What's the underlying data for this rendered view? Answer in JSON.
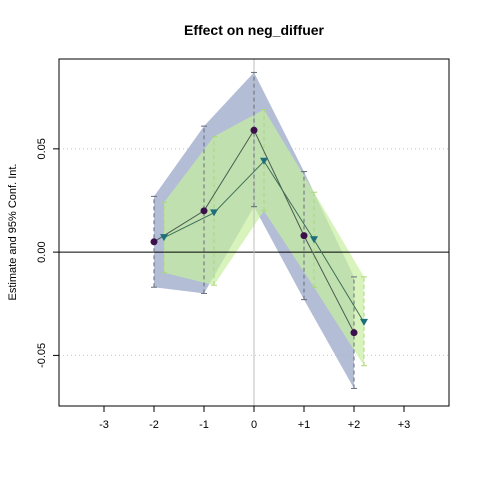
{
  "chart_data": {
    "type": "line",
    "title": "Effect on neg_diffuer",
    "xlabel": "",
    "ylabel": "Estimate and 95% Conf. Int.",
    "xlim": [
      -3.9,
      3.9
    ],
    "ylim": [
      -0.0745,
      0.0935
    ],
    "x_ticks": [
      -3,
      -2,
      -1,
      0,
      1,
      2,
      3
    ],
    "x_tick_labels": [
      "-3",
      "-2",
      "-1",
      "0",
      "+1",
      "+2",
      "+3"
    ],
    "y_ticks": [
      -0.05,
      0.0,
      0.05
    ],
    "y_tick_labels": [
      "-0.05",
      "0.00",
      "0.05"
    ],
    "grid": "horizontal-dotted",
    "zero_line": true,
    "reference_vline": 0,
    "series": [
      {
        "marker": "circle",
        "color": "#3b0f4a",
        "band_color": "#a6b1cf",
        "x": [
          -2,
          -1,
          0,
          1,
          2
        ],
        "y": [
          0.005,
          0.02,
          0.059,
          0.008,
          -0.039
        ],
        "ci_low": [
          -0.017,
          -0.02,
          0.022,
          -0.023,
          -0.066
        ],
        "ci_high": [
          0.027,
          0.061,
          0.087,
          0.039,
          -0.012
        ]
      },
      {
        "marker": "triangle-down",
        "color": "#1f6f7a",
        "band_color": "#c8f0a0",
        "x": [
          -2,
          -1,
          0,
          1,
          2
        ],
        "y": [
          0.007,
          0.019,
          0.044,
          0.006,
          -0.034
        ],
        "ci_low": [
          -0.01,
          -0.016,
          0.02,
          -0.017,
          -0.055
        ],
        "ci_high": [
          0.024,
          0.056,
          0.069,
          0.029,
          -0.012
        ]
      }
    ]
  }
}
